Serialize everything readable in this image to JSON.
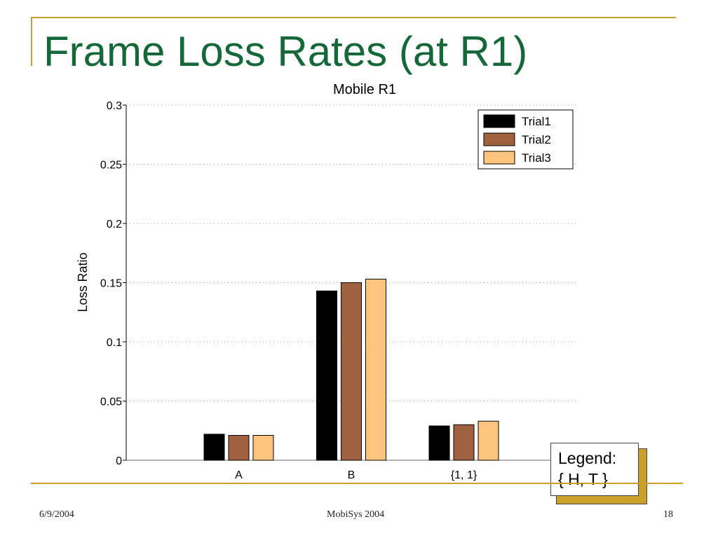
{
  "slide": {
    "title": "Frame Loss Rates (at R1)",
    "footer": {
      "date": "6/9/2004",
      "conference": "MobiSys 2004",
      "page": "18"
    },
    "note": {
      "line1": "Legend:",
      "line2": "{ H, T }"
    },
    "colors": {
      "title": "#16683a",
      "accent": "#c8a02a"
    }
  },
  "chart_data": {
    "type": "bar",
    "title": "Mobile R1",
    "xlabel": "",
    "ylabel": "Loss Ratio",
    "categories": [
      "A",
      "B",
      "{1, 1}"
    ],
    "series": [
      {
        "name": "Trial1",
        "color": "#000000",
        "values": [
          0.022,
          0.143,
          0.029
        ]
      },
      {
        "name": "Trial2",
        "color": "#a0613f",
        "values": [
          0.021,
          0.15,
          0.03
        ]
      },
      {
        "name": "Trial3",
        "color": "#ffc47e",
        "values": [
          0.021,
          0.153,
          0.033
        ]
      }
    ],
    "ylim": [
      0,
      0.3
    ],
    "yticks": [
      0,
      0.05,
      0.1,
      0.15,
      0.2,
      0.25,
      0.3
    ],
    "ytick_labels": [
      "0",
      "0.05",
      "0.1",
      "0.15",
      "0.2",
      "0.25",
      "0.3"
    ],
    "grid": true,
    "legend_position": "top-right"
  }
}
